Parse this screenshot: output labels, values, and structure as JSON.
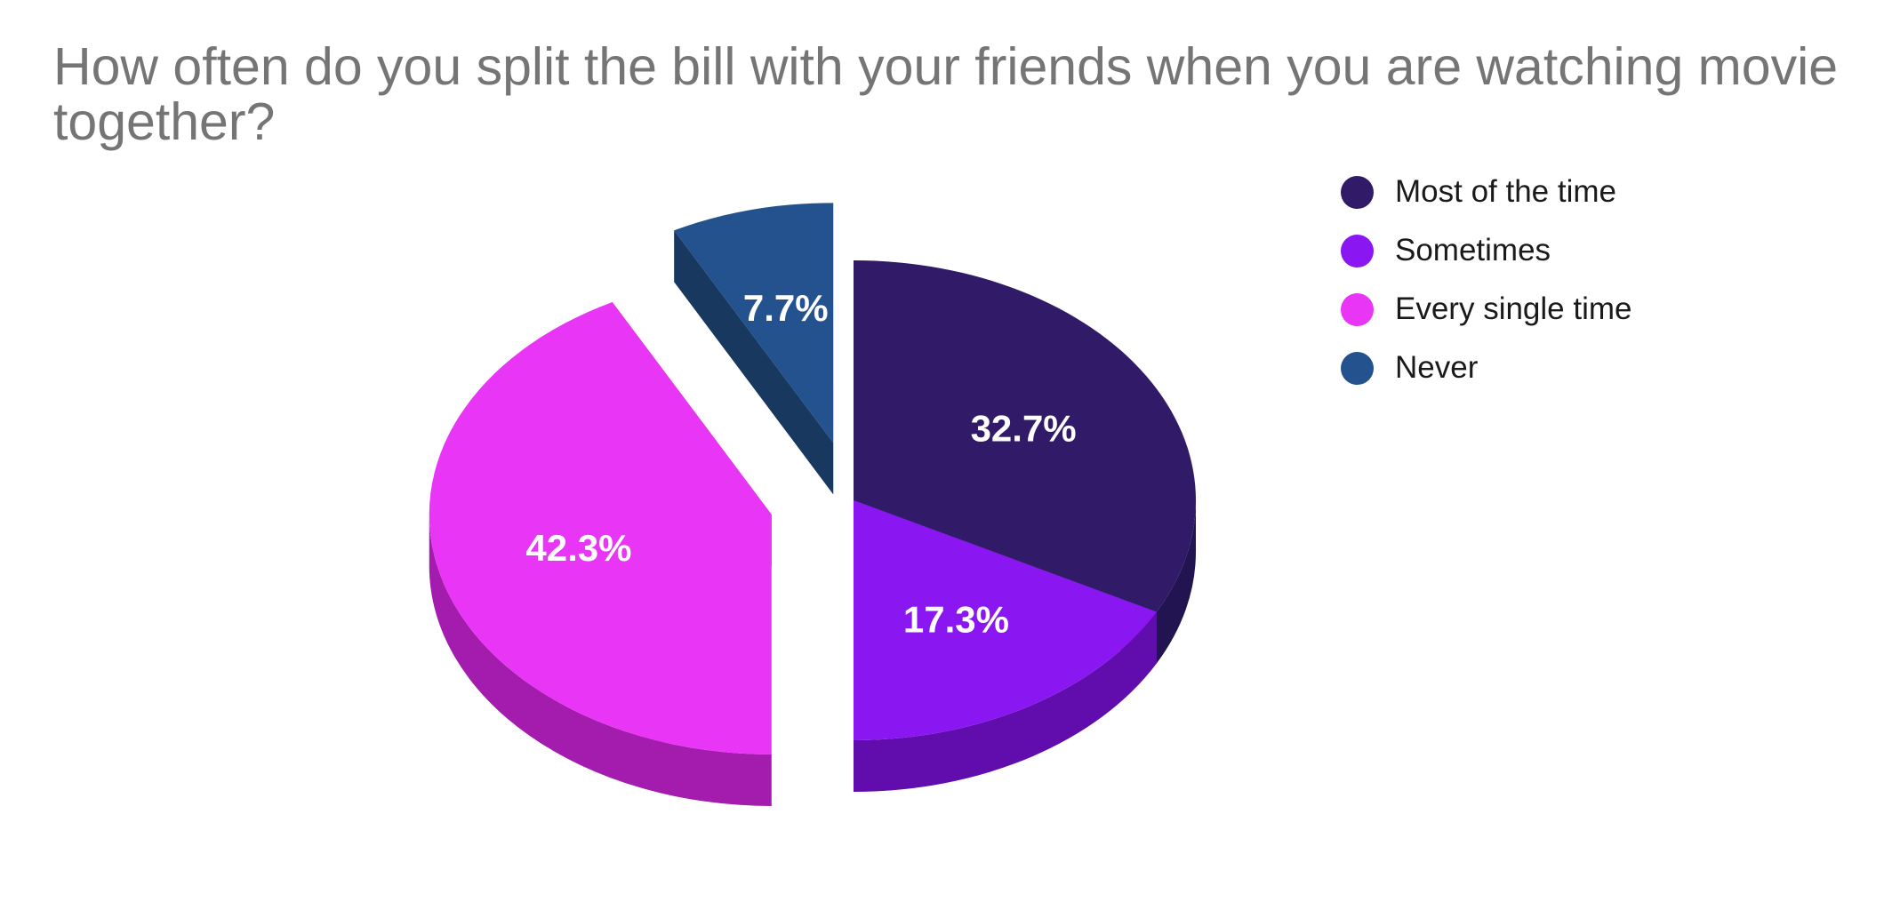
{
  "chart_data": {
    "type": "pie",
    "title": "How often do you split the bill with your friends when you are watching movie together?",
    "slices": [
      {
        "label": "Most of the time",
        "value": 32.7,
        "display": "32.7%",
        "color": "#311b69",
        "side_color": "#221351",
        "exploded": false
      },
      {
        "label": "Sometimes",
        "value": 17.3,
        "display": "17.3%",
        "color": "#8a17f2",
        "side_color": "#610cad",
        "exploded": false
      },
      {
        "label": "Every single time",
        "value": 42.3,
        "display": "42.3%",
        "color": "#e935f5",
        "side_color": "#a31cad",
        "exploded": true
      },
      {
        "label": "Never",
        "value": 7.7,
        "display": "7.7%",
        "color": "#23528e",
        "side_color": "#19385f",
        "exploded": true
      }
    ],
    "legend_position": "top-right",
    "three_d": true
  }
}
